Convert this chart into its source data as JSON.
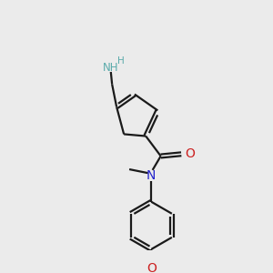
{
  "bg_color": "#ebebeb",
  "bond_color": "#1a1a1a",
  "N_color": "#2222cc",
  "O_color": "#cc2020",
  "NH_color": "#5aabab",
  "H_color": "#5aabab",
  "lw": 1.6,
  "dbo": 0.07,
  "figsize": [
    3.0,
    3.0
  ],
  "dpi": 100,
  "xlim": [
    0,
    10
  ],
  "ylim": [
    0,
    10
  ]
}
